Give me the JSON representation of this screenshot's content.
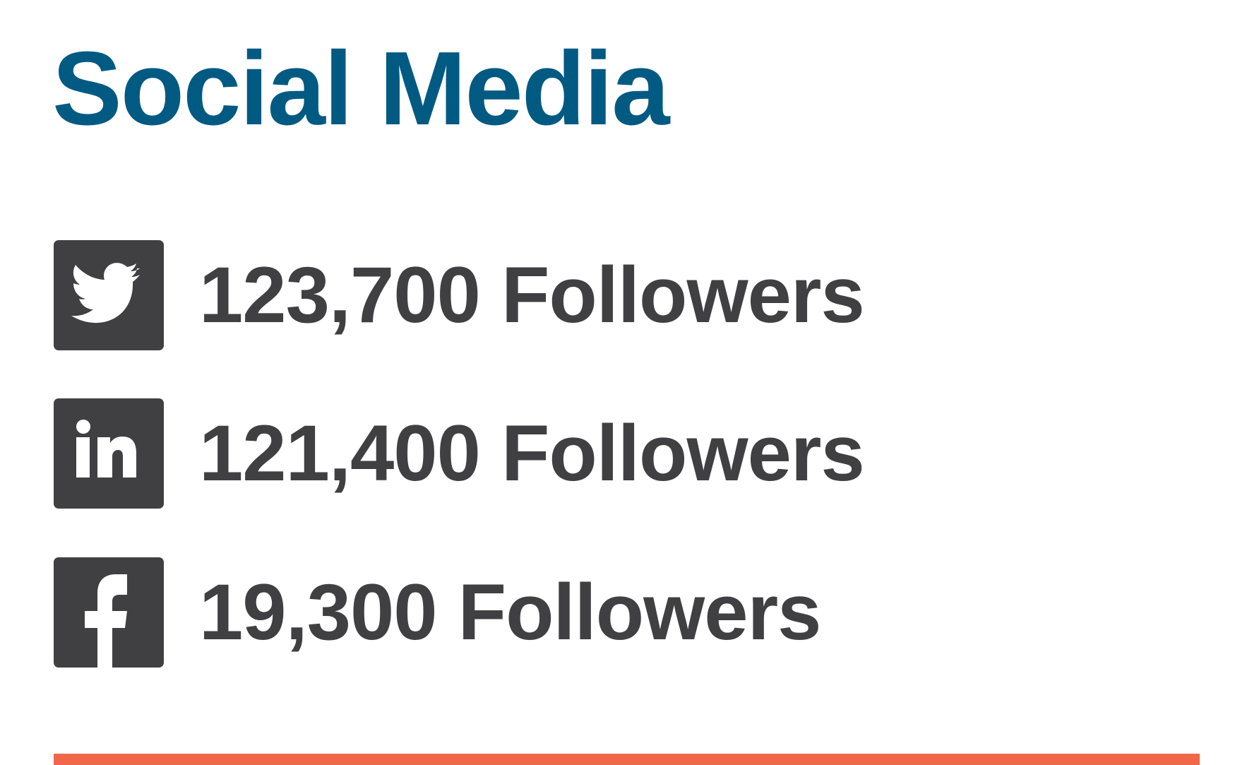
{
  "title": "Social Media",
  "colors": {
    "title": "#005a82",
    "text": "#404042",
    "icon_bg": "#404042",
    "accent_bar": "#f0674a"
  },
  "networks": [
    {
      "icon": "twitter-icon",
      "count_text": "123,700 Followers"
    },
    {
      "icon": "linkedin-icon",
      "count_text": "121,400 Followers"
    },
    {
      "icon": "facebook-icon",
      "count_text": "19,300 Followers"
    }
  ]
}
